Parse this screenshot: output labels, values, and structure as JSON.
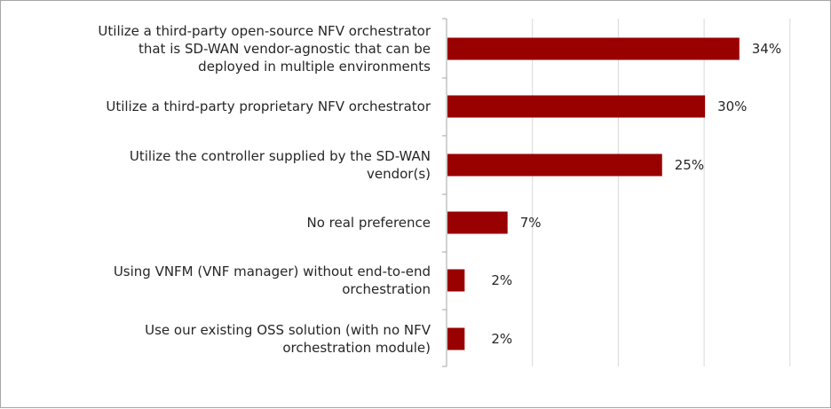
{
  "chart_data": {
    "type": "bar",
    "orientation": "horizontal",
    "title": "",
    "xlabel": "",
    "ylabel": "",
    "categories": [
      [
        "Utilize a third-party open-source NFV orchestrator",
        "that is SD-WAN vendor-agnostic that can be",
        "deployed in multiple environments"
      ],
      [
        "Utilize a third-party proprietary NFV orchestrator"
      ],
      [
        "Utilize the controller supplied by the SD-WAN",
        "vendor(s)"
      ],
      [
        "No real preference"
      ],
      [
        "Using VNFM (VNF manager) without end-to-end",
        "orchestration"
      ],
      [
        "Use our existing OSS solution (with no NFV",
        "orchestration module)"
      ]
    ],
    "values": [
      34,
      30,
      25,
      7,
      2,
      2
    ],
    "value_labels": [
      "34%",
      "30%",
      "25%",
      "7%",
      "2%",
      "2%"
    ],
    "xlim": [
      0,
      40
    ],
    "grid": true,
    "legend": "none",
    "bar_color": "#990000",
    "grid_color": "#d9d9d9",
    "axis_color": "#a6a6a6"
  }
}
